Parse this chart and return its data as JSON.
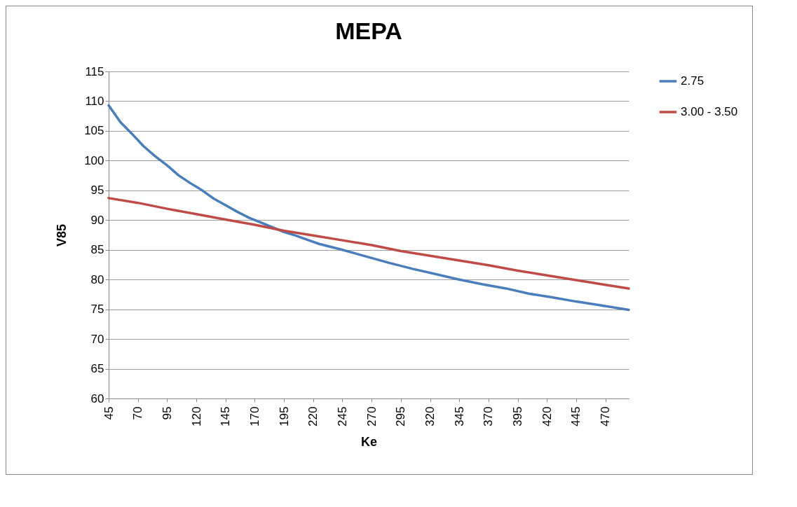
{
  "chart_data": {
    "type": "line",
    "title": "MEPA",
    "xlabel": "Ke",
    "ylabel": "V85",
    "xlim": [
      45,
      490
    ],
    "xticks": [
      45,
      70,
      95,
      120,
      145,
      170,
      195,
      220,
      245,
      270,
      295,
      320,
      345,
      370,
      395,
      420,
      445,
      470
    ],
    "ylim": [
      60,
      115
    ],
    "yticks": [
      60,
      65,
      70,
      75,
      80,
      85,
      90,
      95,
      100,
      105,
      110,
      115
    ],
    "grid": "y",
    "legend": "right",
    "marker": "none",
    "line_style": "solid",
    "series": [
      {
        "name": "2.75",
        "color": "#4a7ebb",
        "x": [
          45,
          55,
          65,
          75,
          85,
          95,
          105,
          115,
          125,
          135,
          145,
          155,
          165,
          175,
          185,
          195,
          205,
          215,
          225,
          245,
          265,
          285,
          305,
          325,
          345,
          365,
          385,
          405,
          425,
          445,
          465,
          490
        ],
        "values": [
          109.3,
          106.5,
          104.5,
          102.4,
          100.7,
          99.2,
          97.5,
          96.2,
          95.0,
          93.6,
          92.5,
          91.4,
          90.4,
          89.6,
          88.8,
          88.0,
          87.4,
          86.7,
          86.0,
          85.0,
          83.9,
          82.8,
          81.8,
          80.9,
          80.0,
          79.2,
          78.5,
          77.6,
          77.0,
          76.3,
          75.7,
          74.9
        ]
      },
      {
        "name": "3.00 - 3.50",
        "color": "#be4b48",
        "x": [
          45,
          70,
          95,
          120,
          145,
          170,
          195,
          220,
          245,
          270,
          295,
          320,
          345,
          370,
          395,
          420,
          445,
          470,
          490
        ],
        "values": [
          93.7,
          92.9,
          91.9,
          91.0,
          90.1,
          89.2,
          88.2,
          87.4,
          86.6,
          85.8,
          84.8,
          84.0,
          83.2,
          82.4,
          81.5,
          80.7,
          79.9,
          79.1,
          78.5
        ]
      }
    ]
  }
}
